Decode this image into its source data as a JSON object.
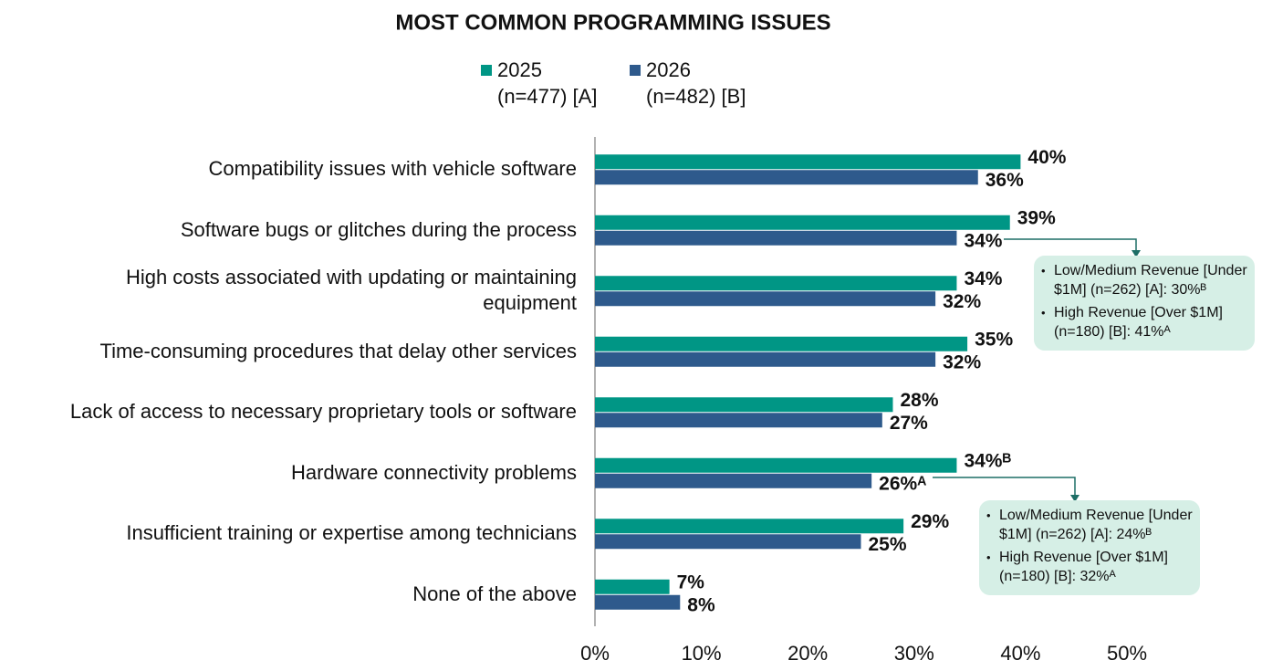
{
  "chart_data": {
    "type": "hbar",
    "title": "MOST COMMON PROGRAMMING ISSUES",
    "categories": [
      "Compatibility issues with vehicle software",
      "Software bugs or glitches during the process",
      "High costs associated with updating or maintaining equipment",
      "Time-consuming procedures that delay other services",
      "Lack of access to necessary proprietary tools or software",
      "Hardware connectivity problems",
      "Insufficient training or expertise among technicians",
      "None of the above"
    ],
    "series": [
      {
        "name": "2025",
        "sample": "(n=477) [A]",
        "color": "#009685",
        "values": [
          40,
          39,
          34,
          35,
          28,
          34,
          29,
          7
        ],
        "value_labels": [
          "40%",
          "39%",
          "34%",
          "35%",
          "28%",
          "34%ᴮ",
          "29%",
          "7%"
        ]
      },
      {
        "name": "2026",
        "sample": "(n=482) [B]",
        "color": "#2e5a8c",
        "values": [
          36,
          34,
          32,
          32,
          27,
          26,
          25,
          8
        ],
        "value_labels": [
          "36%",
          "34%",
          "32%",
          "32%",
          "27%",
          "26%ᴬ",
          "25%",
          "8%"
        ]
      }
    ],
    "xlim": [
      0,
      50
    ],
    "xticks": [
      {
        "value": 0,
        "label": "0%"
      },
      {
        "value": 10,
        "label": "10%"
      },
      {
        "value": 20,
        "label": "20%"
      },
      {
        "value": 30,
        "label": "30%"
      },
      {
        "value": 40,
        "label": "40%"
      },
      {
        "value": 50,
        "label": "50%"
      }
    ],
    "annotations": [
      {
        "items": [
          "Low/Medium Revenue [Under $1M] (n=262) [A]: 30%ᴮ",
          "High Revenue [Over $1M] (n=180) [B]: 41%ᴬ"
        ]
      },
      {
        "items": [
          "Low/Medium Revenue [Under $1M] (n=262) [A]: 24%ᴮ",
          "High Revenue [Over $1M] (n=180) [B]: 32%ᴬ"
        ]
      }
    ]
  }
}
